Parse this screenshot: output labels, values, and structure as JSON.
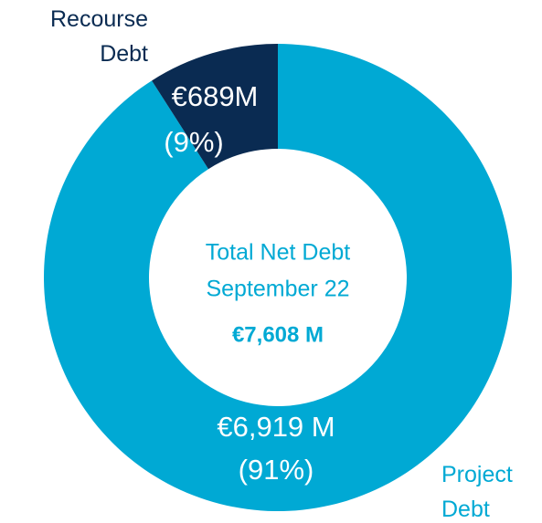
{
  "chart_data": {
    "type": "donut",
    "categories": [
      "Project Debt",
      "Recourse Debt"
    ],
    "values": [
      6919,
      689
    ],
    "value_labels": [
      "€6,919 M",
      "€689M"
    ],
    "percents": [
      91,
      9
    ],
    "percent_labels": [
      "(91%)",
      "(9%)"
    ],
    "colors": [
      "#00a9d4",
      "#0a2b52"
    ],
    "center_title": [
      "Total Net Debt",
      "September 22"
    ],
    "total": {
      "value": 7608,
      "label": "€7,608 M"
    }
  }
}
